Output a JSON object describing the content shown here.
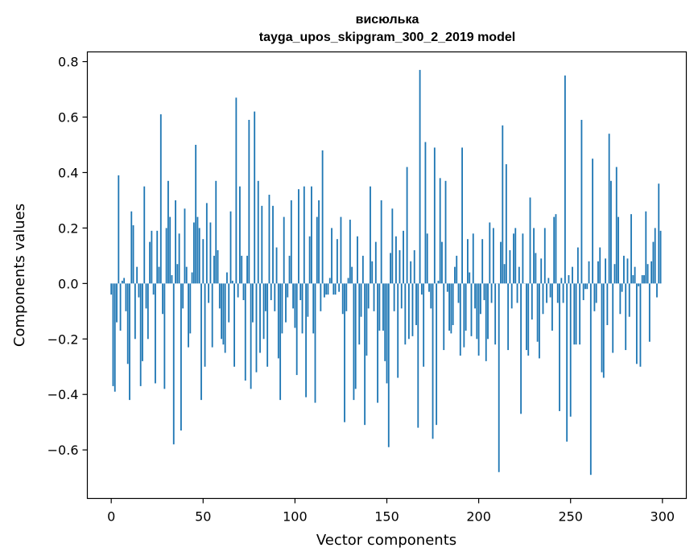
{
  "chart_data": {
    "type": "bar",
    "title": "висюлька",
    "subtitle": "tayga_upos_skipgram_300_2_2019 model",
    "xlabel": "Vector components",
    "ylabel": "Components values",
    "xlim": [
      -13,
      313
    ],
    "ylim": [
      -0.775,
      0.835
    ],
    "xticks": [
      0,
      50,
      100,
      150,
      200,
      250,
      300
    ],
    "xtick_labels": [
      "0",
      "50",
      "100",
      "150",
      "200",
      "250",
      "300"
    ],
    "yticks": [
      -0.6,
      -0.4,
      -0.2,
      0.0,
      0.2,
      0.4,
      0.6,
      0.8
    ],
    "ytick_labels": [
      "−0.6",
      "−0.4",
      "−0.2",
      "0.0",
      "0.2",
      "0.4",
      "0.6",
      "0.8"
    ],
    "bar_color": "#1f77b4",
    "grid": false,
    "x": "0..299",
    "values": [
      -0.04,
      -0.37,
      -0.39,
      -0.14,
      0.39,
      -0.17,
      0.01,
      0.02,
      -0.1,
      -0.29,
      -0.42,
      0.26,
      0.21,
      -0.2,
      0.06,
      -0.05,
      -0.37,
      -0.28,
      0.35,
      -0.09,
      -0.2,
      0.15,
      0.19,
      -0.04,
      -0.36,
      0.19,
      0.06,
      0.61,
      -0.11,
      -0.38,
      0.2,
      0.37,
      0.24,
      0.03,
      -0.58,
      0.3,
      0.07,
      0.18,
      -0.53,
      -0.09,
      0.27,
      0.06,
      -0.23,
      -0.18,
      0.04,
      0.22,
      0.5,
      0.24,
      0.2,
      -0.42,
      0.16,
      -0.3,
      0.29,
      -0.07,
      0.22,
      -0.23,
      0.1,
      0.37,
      0.12,
      -0.09,
      -0.2,
      -0.22,
      -0.25,
      0.04,
      -0.14,
      0.26,
      0.01,
      -0.3,
      0.67,
      -0.05,
      0.35,
      0.1,
      -0.06,
      -0.35,
      0.1,
      0.59,
      -0.38,
      -0.14,
      0.62,
      -0.32,
      0.37,
      -0.25,
      0.28,
      -0.2,
      -0.1,
      -0.3,
      0.32,
      -0.06,
      0.28,
      -0.1,
      0.13,
      -0.27,
      -0.42,
      -0.18,
      0.24,
      -0.14,
      -0.05,
      0.1,
      0.3,
      -0.09,
      -0.16,
      -0.33,
      0.34,
      -0.06,
      -0.18,
      0.35,
      -0.41,
      -0.12,
      0.17,
      0.35,
      -0.18,
      -0.43,
      0.24,
      0.3,
      -0.1,
      0.48,
      -0.05,
      -0.04,
      -0.04,
      0.02,
      0.2,
      -0.04,
      -0.04,
      0.16,
      -0.03,
      0.24,
      -0.11,
      -0.5,
      -0.1,
      0.02,
      0.23,
      0.06,
      -0.42,
      -0.38,
      0.17,
      -0.22,
      -0.12,
      0.1,
      -0.51,
      -0.26,
      -0.09,
      0.35,
      0.08,
      -0.1,
      0.15,
      -0.43,
      -0.17,
      0.3,
      -0.17,
      -0.28,
      -0.36,
      -0.59,
      0.11,
      0.27,
      -0.1,
      0.17,
      -0.34,
      0.12,
      -0.09,
      0.19,
      -0.22,
      0.42,
      -0.2,
      0.08,
      -0.19,
      0.12,
      -0.15,
      -0.52,
      0.77,
      -0.04,
      -0.3,
      0.51,
      0.18,
      -0.03,
      -0.09,
      -0.56,
      0.49,
      -0.51,
      0.01,
      0.38,
      0.15,
      -0.24,
      0.37,
      -0.03,
      -0.17,
      -0.18,
      -0.15,
      0.06,
      0.1,
      -0.07,
      -0.26,
      0.49,
      -0.23,
      -0.17,
      0.16,
      0.04,
      -0.19,
      0.18,
      -0.09,
      -0.2,
      -0.26,
      -0.11,
      0.16,
      -0.06,
      -0.28,
      -0.2,
      0.22,
      -0.07,
      0.2,
      -0.22,
      0.0,
      -0.68,
      0.15,
      0.57,
      0.07,
      0.43,
      -0.24,
      0.12,
      -0.09,
      0.18,
      0.2,
      -0.07,
      0.06,
      -0.47,
      0.18,
      0.0,
      -0.24,
      -0.26,
      0.31,
      -0.13,
      0.2,
      0.11,
      -0.21,
      -0.27,
      0.09,
      -0.11,
      0.2,
      -0.07,
      0.02,
      -0.05,
      -0.17,
      0.24,
      0.25,
      -0.07,
      -0.46,
      0.02,
      -0.07,
      0.75,
      -0.57,
      0.03,
      -0.48,
      0.06,
      -0.22,
      -0.22,
      0.13,
      -0.22,
      0.59,
      -0.06,
      -0.02,
      -0.02,
      0.08,
      -0.69,
      0.45,
      -0.1,
      -0.07,
      0.08,
      0.13,
      -0.32,
      -0.34,
      0.09,
      -0.15,
      0.54,
      0.37,
      -0.25,
      0.07,
      0.42,
      0.24,
      -0.11,
      -0.03,
      0.1,
      -0.24,
      0.09,
      -0.12,
      0.25,
      0.03,
      0.06,
      -0.29,
      -0.01,
      -0.3,
      0.03,
      0.03,
      0.26,
      0.07,
      -0.21,
      0.08,
      0.15,
      0.2,
      -0.05,
      0.36,
      0.19
    ]
  }
}
